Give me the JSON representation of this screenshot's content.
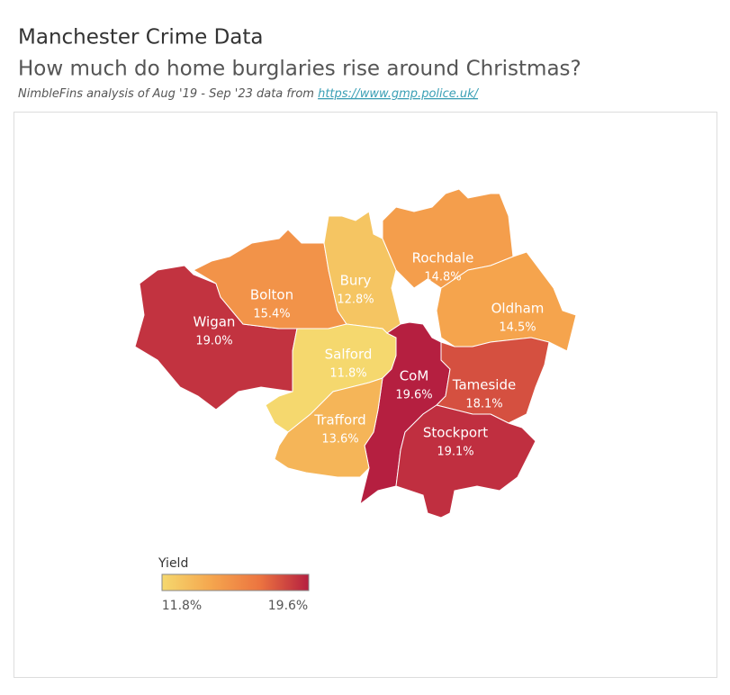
{
  "chart_data": {
    "type": "choropleth",
    "title": "Manchester Crime Data",
    "subtitle": "How much do home burglaries rise around Christmas?",
    "source_text": "NimbleFins analysis of Aug '19 - Sep '23 data from ",
    "source_link": "https://www.gmp.police.uk/",
    "categories": [
      "Wigan",
      "Bolton",
      "Bury",
      "Rochdale",
      "Oldham",
      "Salford",
      "CoM",
      "Trafford",
      "Tameside",
      "Stockport"
    ],
    "values": [
      19.0,
      15.4,
      12.8,
      14.8,
      14.5,
      11.8,
      19.6,
      13.6,
      18.1,
      19.1
    ],
    "value_labels": [
      "19.0%",
      "15.4%",
      "12.8%",
      "14.8%",
      "14.5%",
      "11.8%",
      "19.6%",
      "13.6%",
      "18.1%",
      "19.1%"
    ],
    "colors": [
      "#f5d86e",
      "#f5a64e",
      "#ec7440",
      "#b51f40"
    ],
    "legend": {
      "title": "Yield",
      "min": {
        "value": 11.8,
        "label": "11.8%"
      },
      "max": {
        "value": 19.6,
        "label": "19.6%"
      }
    }
  }
}
